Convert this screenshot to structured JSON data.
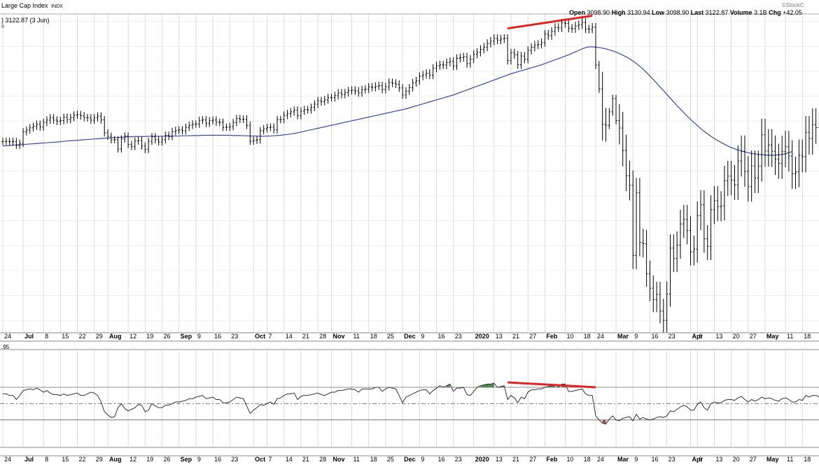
{
  "header": {
    "title": "Large Cap Index",
    "exchange": "INDX",
    "ohlc_label": ") 3122.87 (3 Jun)",
    "ma_label_fragment": "8",
    "rsi_label_fragment": ".95",
    "watermark": "StockC",
    "quote": [
      {
        "k": "Open",
        "v": "3098.90"
      },
      {
        "k": "High",
        "v": "3130.94"
      },
      {
        "k": "Low",
        "v": "3098.90"
      },
      {
        "k": "Last",
        "v": "3122.87"
      },
      {
        "k": "Volume",
        "v": "3.1B"
      },
      {
        "k": "Chg",
        "v": "+42.05"
      }
    ]
  },
  "colors": {
    "price": "#000000",
    "moving_average": "#3a4a9a",
    "trendline": "#e52222",
    "grid": "#d0d0d0",
    "overbought_fill": "#4f8a4f",
    "oversold_fill": "#a34a4a"
  },
  "x_axis": {
    "labels": [
      {
        "text": "24",
        "i": 0
      },
      {
        "text": "Jul",
        "i": 6,
        "bold": true
      },
      {
        "text": "8",
        "i": 12
      },
      {
        "text": "15",
        "i": 17
      },
      {
        "text": "22",
        "i": 22
      },
      {
        "text": "29",
        "i": 27
      },
      {
        "text": "Aug",
        "i": 31,
        "bold": true
      },
      {
        "text": "12",
        "i": 37
      },
      {
        "text": "19",
        "i": 42
      },
      {
        "text": "26",
        "i": 47
      },
      {
        "text": "Sep",
        "i": 52,
        "bold": true
      },
      {
        "text": "9",
        "i": 57
      },
      {
        "text": "16",
        "i": 62
      },
      {
        "text": "23",
        "i": 67
      },
      {
        "text": "Oct",
        "i": 74,
        "bold": true
      },
      {
        "text": "7",
        "i": 78
      },
      {
        "text": "14",
        "i": 83
      },
      {
        "text": "21",
        "i": 88
      },
      {
        "text": "28",
        "i": 93
      },
      {
        "text": "Nov",
        "i": 97,
        "bold": true
      },
      {
        "text": "11",
        "i": 103
      },
      {
        "text": "18",
        "i": 108
      },
      {
        "text": "25",
        "i": 113
      },
      {
        "text": "Dec",
        "i": 118,
        "bold": true
      },
      {
        "text": "9",
        "i": 123
      },
      {
        "text": "16",
        "i": 128
      },
      {
        "text": "23",
        "i": 133
      },
      {
        "text": "2020",
        "i": 139,
        "bold": true
      },
      {
        "text": "13",
        "i": 145
      },
      {
        "text": "21",
        "i": 150
      },
      {
        "text": "27",
        "i": 155
      },
      {
        "text": "Feb",
        "i": 160,
        "bold": true
      },
      {
        "text": "10",
        "i": 166
      },
      {
        "text": "18",
        "i": 171
      },
      {
        "text": "24",
        "i": 175
      },
      {
        "text": "Mar",
        "i": 181,
        "bold": true
      },
      {
        "text": "9",
        "i": 186
      },
      {
        "text": "16",
        "i": 191
      },
      {
        "text": "23",
        "i": 196
      },
      {
        "text": "Apr",
        "i": 203,
        "bold": true
      },
      {
        "text": "6",
        "i": 205
      },
      {
        "text": "13",
        "i": 210
      },
      {
        "text": "20",
        "i": 215
      },
      {
        "text": "27",
        "i": 220
      },
      {
        "text": "May",
        "i": 225,
        "bold": true
      },
      {
        "text": "11",
        "i": 231
      },
      {
        "text": "18",
        "i": 236
      }
    ]
  },
  "chart_data": [
    {
      "type": "ohlc",
      "title": "Large Cap Index",
      "ylim": [
        2150,
        3430
      ],
      "grid": true,
      "series": [
        {
          "name": "Price",
          "values": [
            2918,
            2919,
            2917,
            2918,
            2903,
            2911,
            2957,
            2964,
            2973,
            2979,
            2987,
            2976,
            2995,
            3004,
            3013,
            3004,
            2999,
            3002,
            3015,
            3006,
            3014,
            3024,
            3026,
            3021,
            3014,
            3013,
            3004,
            3013,
            3020,
            3005,
            2953,
            2939,
            2925,
            2925,
            2888,
            2928,
            2940,
            2906,
            2898,
            2920,
            2922,
            2900,
            2886,
            2919,
            2937,
            2925,
            2916,
            2925,
            2943,
            2938,
            2958,
            2963,
            2965,
            2961,
            2975,
            2983,
            2988,
            2988,
            3003,
            3005,
            2991,
            3001,
            3004,
            2995,
            2995,
            2975,
            2975,
            2978,
            2994,
            3010,
            3007,
            3008,
            2983,
            2919,
            2923,
            2925,
            2961,
            2969,
            2974,
            2976,
            2965,
            3006,
            3006,
            3023,
            3030,
            3037,
            3044,
            3022,
            3040,
            3046,
            3045,
            3055,
            3068,
            3082,
            3078,
            3085,
            3094,
            3094,
            3102,
            3113,
            3107,
            3114,
            3122,
            3124,
            3121,
            3113,
            3126,
            3128,
            3137,
            3135,
            3140,
            3142,
            3127,
            3138,
            3155,
            3152,
            3148,
            3133,
            3105,
            3120,
            3134,
            3154,
            3161,
            3180,
            3186,
            3192,
            3184,
            3212,
            3222,
            3226,
            3225,
            3235,
            3240,
            3221,
            3252,
            3255,
            3258,
            3231,
            3249,
            3268,
            3276,
            3288,
            3297,
            3312,
            3321,
            3332,
            3325,
            3330,
            3332,
            3243,
            3274,
            3266,
            3226,
            3261,
            3248,
            3284,
            3296,
            3305,
            3308,
            3315,
            3349,
            3343,
            3360,
            3376,
            3374,
            3394,
            3392,
            3373,
            3371,
            3382,
            3387,
            3396,
            3370,
            3369,
            3377,
            3225,
            3129,
            2987,
            2983,
            3037,
            3090,
            3002,
            2972,
            2882,
            2780,
            2742,
            2460,
            2712,
            2512,
            2508,
            2387,
            2329,
            2283,
            2304,
            2237,
            2200,
            2305,
            2490,
            2448,
            2502,
            2587,
            2606,
            2561,
            2475,
            2486,
            2620,
            2664,
            2527,
            2497,
            2644,
            2680,
            2656,
            2660,
            2760,
            2779,
            2763,
            2744,
            2840,
            2879,
            2798,
            2737,
            2820,
            2772,
            2819,
            2945,
            2880,
            2904,
            2879,
            2847,
            2830,
            2878,
            2897,
            2860,
            2789,
            2796,
            2863,
            2857,
            2955,
            2930,
            2985,
            2974,
            2948,
            3006,
            3056,
            3064,
            3040,
            3123
          ]
        },
        {
          "name": "Moving Average",
          "values": [
            2900,
            2901,
            2902,
            2903,
            2904,
            2905,
            2906,
            2907,
            2908,
            2909,
            2910,
            2911,
            2912,
            2913,
            2914,
            2915,
            2916,
            2917,
            2919,
            2920,
            2921,
            2922,
            2923,
            2924,
            2925,
            2926,
            2927,
            2928,
            2929,
            2930,
            2931,
            2932,
            2933,
            2934,
            2934,
            2935,
            2936,
            2937,
            2937,
            2938,
            2938,
            2938,
            2938,
            2939,
            2939,
            2939,
            2939,
            2939,
            2939,
            2940,
            2940,
            2940,
            2940,
            2941,
            2941,
            2941,
            2942,
            2942,
            2942,
            2943,
            2943,
            2943,
            2943,
            2943,
            2943,
            2943,
            2943,
            2943,
            2942,
            2942,
            2942,
            2941,
            2941,
            2940,
            2940,
            2940,
            2939,
            2939,
            2940,
            2940,
            2941,
            2942,
            2943,
            2945,
            2946,
            2948,
            2950,
            2953,
            2956,
            2959,
            2962,
            2965,
            2968,
            2971,
            2974,
            2977,
            2980,
            2983,
            2986,
            2989,
            2992,
            2995,
            2998,
            3001,
            3004,
            3007,
            3010,
            3013,
            3016,
            3019,
            3022,
            3025,
            3028,
            3031,
            3034,
            3037,
            3040,
            3043,
            3046,
            3049,
            3053,
            3057,
            3061,
            3065,
            3069,
            3073,
            3077,
            3081,
            3085,
            3089,
            3093,
            3097,
            3101,
            3105,
            3110,
            3115,
            3120,
            3125,
            3130,
            3135,
            3140,
            3145,
            3150,
            3155,
            3160,
            3165,
            3170,
            3175,
            3180,
            3185,
            3190,
            3194,
            3198,
            3202,
            3206,
            3210,
            3214,
            3218,
            3222,
            3226,
            3231,
            3236,
            3241,
            3246,
            3251,
            3256,
            3261,
            3266,
            3272,
            3278,
            3284,
            3290,
            3295,
            3298,
            3298,
            3297,
            3295,
            3293,
            3290,
            3286,
            3282,
            3277,
            3271,
            3265,
            3258,
            3250,
            3241,
            3231,
            3220,
            3208,
            3195,
            3181,
            3167,
            3152,
            3137,
            3122,
            3107,
            3092,
            3077,
            3062,
            3048,
            3034,
            3020,
            3007,
            2994,
            2982,
            2970,
            2959,
            2949,
            2939,
            2930,
            2922,
            2914,
            2907,
            2900,
            2894,
            2889,
            2884,
            2880,
            2876,
            2873,
            2870,
            2868,
            2866,
            2865,
            2864,
            2863,
            2863,
            2863,
            2864,
            2866,
            2869,
            2873,
            2878
          ]
        }
      ]
    },
    {
      "type": "line",
      "title": "",
      "ylim": [
        10,
        100
      ],
      "reference_lines": [
        70,
        50,
        30
      ],
      "series": [
        {
          "name": "",
          "values": [
            62,
            62,
            60,
            60,
            55,
            60,
            66,
            67,
            68,
            67,
            69,
            67,
            64,
            66,
            63,
            61,
            61,
            60,
            62,
            60,
            61,
            62,
            63,
            60,
            60,
            62,
            64,
            63,
            60,
            52,
            40,
            36,
            33,
            34,
            45,
            50,
            44,
            41,
            43,
            45,
            49,
            48,
            40,
            42,
            50,
            47,
            45,
            45,
            48,
            48,
            50,
            52,
            52,
            53,
            54,
            56,
            56,
            58,
            59,
            60,
            56,
            57,
            58,
            55,
            55,
            51,
            51,
            52,
            55,
            58,
            57,
            56,
            47,
            38,
            42,
            45,
            49,
            48,
            50,
            52,
            49,
            56,
            57,
            60,
            62,
            62,
            63,
            55,
            59,
            60,
            60,
            61,
            62,
            63,
            61,
            60,
            62,
            64,
            64,
            66,
            66,
            67,
            68,
            68,
            67,
            64,
            68,
            68,
            68,
            68,
            70,
            70,
            65,
            68,
            70,
            69,
            68,
            60,
            51,
            58,
            60,
            62,
            64,
            66,
            67,
            67,
            62,
            66,
            69,
            72,
            70,
            72,
            74,
            65,
            69,
            69,
            70,
            61,
            60,
            65,
            70,
            72,
            73,
            74,
            74,
            75,
            70,
            71,
            72,
            55,
            60,
            57,
            51,
            58,
            56,
            64,
            67,
            67,
            68,
            68,
            70,
            71,
            72,
            73,
            70,
            74,
            74,
            65,
            65,
            66,
            67,
            68,
            62,
            60,
            60,
            35,
            30,
            26,
            25,
            31,
            35,
            30,
            29,
            32,
            33,
            34,
            29,
            37,
            31,
            33,
            31,
            30,
            31,
            33,
            34,
            33,
            35,
            41,
            40,
            43,
            46,
            48,
            46,
            42,
            42,
            49,
            52,
            45,
            42,
            50,
            52,
            51,
            51,
            54,
            55,
            55,
            54,
            57,
            59,
            55,
            52,
            55,
            53,
            55,
            58,
            56,
            57,
            56,
            54,
            53,
            56,
            57,
            55,
            52,
            52,
            55,
            54,
            60,
            58,
            60,
            60,
            58,
            61,
            63,
            63,
            61,
            65
          ]
        }
      ]
    }
  ]
}
